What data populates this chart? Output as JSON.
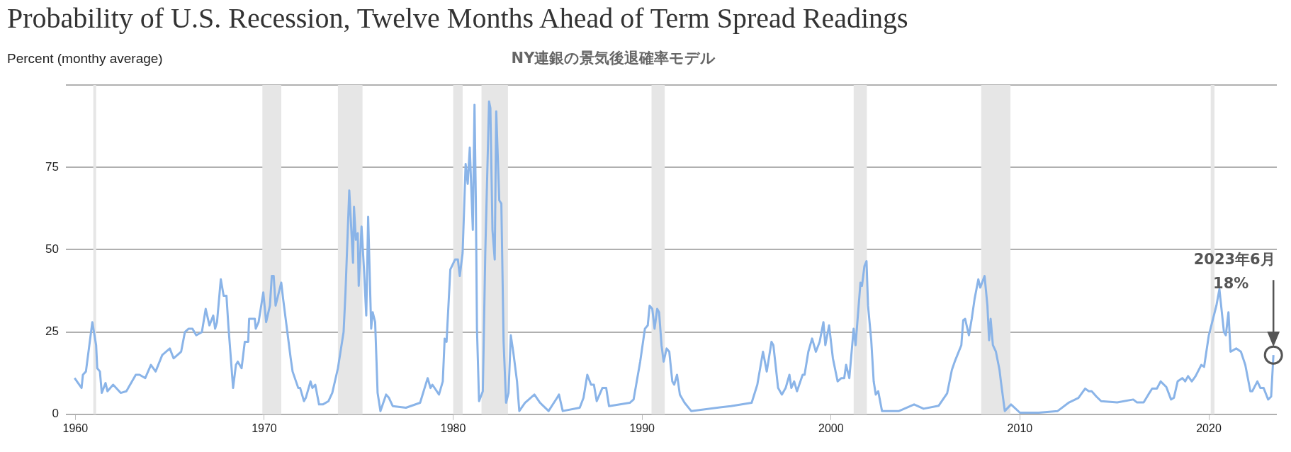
{
  "chart_data": {
    "type": "line",
    "title": "Probability of U.S. Recession, Twelve Months Ahead of Term Spread Readings",
    "subtitle": "NY連銀の景気後退確率モデル",
    "ylabel": "Percent (monthy average)",
    "xlim": [
      1959.5,
      2023.6
    ],
    "xticks": [
      {
        "value": 1960,
        "label": "1960"
      },
      {
        "value": 1970,
        "label": "1970"
      },
      {
        "value": 1980,
        "label": "1980"
      },
      {
        "value": 1990,
        "label": "1990"
      },
      {
        "value": 2000,
        "label": "2000"
      },
      {
        "value": 2010,
        "label": "2010"
      },
      {
        "value": 2020,
        "label": "2020"
      }
    ],
    "ylim": [
      0,
      100
    ],
    "yticks": [
      0,
      25,
      50,
      75,
      {
        "value": 100,
        "label": null
      }
    ],
    "grid": "y",
    "legend": false,
    "marker": "none",
    "line_style": "solid",
    "bands": [
      {
        "axis": "x",
        "from": 1960.95,
        "to": 1961.1,
        "color": "#e6e6e6"
      },
      {
        "axis": "x",
        "from": 1969.9,
        "to": 1970.9,
        "color": "#e6e6e6"
      },
      {
        "axis": "x",
        "from": 1973.9,
        "to": 1975.2,
        "color": "#e6e6e6"
      },
      {
        "axis": "x",
        "from": 1980.0,
        "to": 1980.5,
        "color": "#e6e6e6"
      },
      {
        "axis": "x",
        "from": 1981.5,
        "to": 1982.9,
        "color": "#e6e6e6"
      },
      {
        "axis": "x",
        "from": 1990.5,
        "to": 1991.2,
        "color": "#e6e6e6"
      },
      {
        "axis": "x",
        "from": 2001.2,
        "to": 2001.9,
        "color": "#e6e6e6"
      },
      {
        "axis": "x",
        "from": 2007.95,
        "to": 2009.5,
        "color": "#e6e6e6"
      },
      {
        "axis": "x",
        "from": 2020.1,
        "to": 2020.3,
        "color": "#e6e6e6"
      }
    ],
    "annotations": [
      "2023年6月\n18%"
    ],
    "series": [
      {
        "color": "#8ab4e8",
        "x": [
          1959.96,
          1960.33,
          1960.4,
          1960.56,
          1960.9,
          1961.1,
          1961.16,
          1961.3,
          1961.4,
          1961.6,
          1961.7,
          1962.0,
          1962.4,
          1962.7,
          1963.2,
          1963.4,
          1963.7,
          1964.0,
          1964.25,
          1964.6,
          1965.0,
          1965.2,
          1965.6,
          1965.8,
          1966.0,
          1966.2,
          1966.4,
          1966.7,
          1966.9,
          1967.1,
          1967.3,
          1967.4,
          1967.5,
          1967.7,
          1967.85,
          1968.0,
          1968.1,
          1968.35,
          1968.5,
          1968.6,
          1968.8,
          1968.97,
          1969.15,
          1969.2,
          1969.5,
          1969.55,
          1969.7,
          1969.95,
          1970.1,
          1970.3,
          1970.4,
          1970.5,
          1970.6,
          1970.9,
          1971.0,
          1971.4,
          1971.5,
          1971.8,
          1971.9,
          1972.1,
          1972.2,
          1972.45,
          1972.55,
          1972.7,
          1972.9,
          1973.1,
          1973.4,
          1973.6,
          1973.9,
          1974.2,
          1974.3,
          1974.5,
          1974.7,
          1974.75,
          1974.85,
          1974.95,
          1975.0,
          1975.15,
          1975.27,
          1975.4,
          1975.5,
          1975.66,
          1975.74,
          1975.87,
          1976.0,
          1976.15,
          1976.45,
          1976.6,
          1976.8,
          1977.5,
          1978.25,
          1978.65,
          1978.8,
          1978.9,
          1979.25,
          1979.45,
          1979.55,
          1979.65,
          1979.85,
          1980.1,
          1980.25,
          1980.35,
          1980.5,
          1980.66,
          1980.77,
          1980.88,
          1981.04,
          1981.13,
          1981.2,
          1981.26,
          1981.37,
          1981.57,
          1981.7,
          1981.9,
          1981.97,
          1982.08,
          1982.2,
          1982.28,
          1982.44,
          1982.55,
          1982.67,
          1982.8,
          1982.93,
          1983.05,
          1983.18,
          1983.38,
          1983.5,
          1983.8,
          1984.1,
          1984.3,
          1984.6,
          1985.05,
          1985.5,
          1985.6,
          1985.8,
          1986.7,
          1986.9,
          1987.1,
          1987.3,
          1987.45,
          1987.6,
          1987.9,
          1988.1,
          1988.25,
          1989.35,
          1989.55,
          1989.9,
          1990.15,
          1990.3,
          1990.4,
          1990.54,
          1990.66,
          1990.8,
          1990.9,
          1991.03,
          1991.14,
          1991.3,
          1991.44,
          1991.6,
          1991.7,
          1991.85,
          1992.0,
          1992.25,
          1992.6,
          1994.7,
          1995.8,
          1996.1,
          1996.4,
          1996.6,
          1996.85,
          1996.95,
          1997.2,
          1997.4,
          1997.6,
          1997.8,
          1997.9,
          1998.05,
          1998.2,
          1998.5,
          1998.6,
          1998.8,
          1999.0,
          1999.2,
          1999.4,
          1999.6,
          1999.7,
          1999.9,
          2000.1,
          2000.35,
          2000.55,
          2000.7,
          2000.8,
          2000.97,
          2001.2,
          2001.3,
          2001.56,
          2001.64,
          2001.77,
          2001.88,
          2001.96,
          2002.13,
          2002.26,
          2002.37,
          2002.5,
          2002.7,
          2003.6,
          2004.4,
          2004.9,
          2005.7,
          2006.15,
          2006.4,
          2006.55,
          2006.9,
          2007.0,
          2007.1,
          2007.3,
          2007.45,
          2007.6,
          2007.8,
          2007.9,
          2008.13,
          2008.28,
          2008.37,
          2008.45,
          2008.57,
          2008.73,
          2008.92,
          2009.0,
          2009.2,
          2009.53,
          2010.0,
          2011.0,
          2012.0,
          2012.6,
          2013.1,
          2013.45,
          2013.65,
          2013.8,
          2014.05,
          2014.3,
          2015.15,
          2016.0,
          2016.2,
          2016.55,
          2016.8,
          2017.0,
          2017.25,
          2017.45,
          2017.75,
          2018.0,
          2018.15,
          2018.35,
          2018.6,
          2018.75,
          2018.9,
          2019.1,
          2019.3,
          2019.6,
          2019.75,
          2020.0,
          2020.16,
          2020.4,
          2020.56,
          2020.8,
          2020.9,
          2021.04,
          2021.15,
          2021.45,
          2021.7,
          2021.93,
          2022.2,
          2022.3,
          2022.57,
          2022.73,
          2022.9,
          2023.14,
          2023.3,
          2023.42
        ],
        "values": [
          11,
          8,
          12,
          13,
          28,
          21,
          14,
          13,
          6.5,
          9.5,
          7,
          9,
          6.5,
          7,
          12,
          12,
          11,
          15,
          13,
          18,
          20,
          17,
          19,
          25,
          26,
          26,
          24,
          25,
          32,
          27,
          30,
          26,
          28,
          41,
          36,
          36,
          27,
          8,
          15,
          16,
          14,
          22,
          22,
          29,
          29,
          26,
          28,
          37,
          28,
          33,
          42,
          42,
          33,
          40,
          35,
          17,
          13,
          8,
          8,
          4,
          5,
          10,
          8,
          9,
          3,
          3,
          4,
          6.5,
          14,
          25,
          37,
          68,
          46,
          63,
          53,
          55,
          39,
          57,
          45,
          30,
          60,
          26,
          31,
          28,
          6.5,
          1,
          6,
          5,
          2.5,
          2,
          3.5,
          11,
          8,
          9,
          6,
          10,
          23,
          22,
          44,
          47,
          47,
          42,
          49,
          76,
          70,
          81,
          56,
          94,
          65,
          26,
          4,
          7,
          49,
          95,
          93,
          56,
          47,
          92,
          65,
          64,
          22,
          3.5,
          6.5,
          24,
          19,
          10,
          1,
          3.5,
          5,
          6,
          3.5,
          1,
          5,
          6,
          1,
          2,
          5,
          12,
          9,
          9,
          4,
          8,
          8,
          2.5,
          3.5,
          4.5,
          16,
          26,
          27,
          33,
          32,
          26,
          32,
          31,
          21,
          16,
          20,
          19,
          10,
          9,
          12,
          6,
          3.5,
          1,
          2.5,
          3.5,
          9,
          19,
          13,
          22,
          21,
          8,
          6,
          8,
          12,
          8,
          10,
          7,
          12,
          12,
          19,
          23,
          19,
          22,
          28,
          21,
          27,
          17,
          10,
          11,
          11,
          15,
          11,
          26,
          21,
          40,
          39,
          45,
          46.5,
          33,
          22.5,
          10,
          6,
          7,
          1,
          1,
          3,
          1.7,
          2.6,
          6.4,
          13.5,
          16,
          21,
          28.6,
          29,
          24,
          29,
          35,
          41,
          38.5,
          42,
          33,
          22.5,
          29,
          21,
          19,
          13.5,
          9.7,
          1,
          3,
          0.5,
          0.5,
          1,
          3.6,
          5,
          7.8,
          7,
          7,
          5.4,
          4,
          3.6,
          4.5,
          3.6,
          3.6,
          6,
          7.8,
          7.8,
          10,
          8.3,
          4.5,
          5,
          10,
          11,
          10,
          11.6,
          10,
          11.6,
          15,
          14.4,
          24,
          27.6,
          33,
          38,
          25,
          24,
          31,
          19,
          20,
          19,
          15,
          7,
          7,
          10,
          8,
          8,
          4.5,
          5.4,
          18
        ]
      }
    ]
  }
}
